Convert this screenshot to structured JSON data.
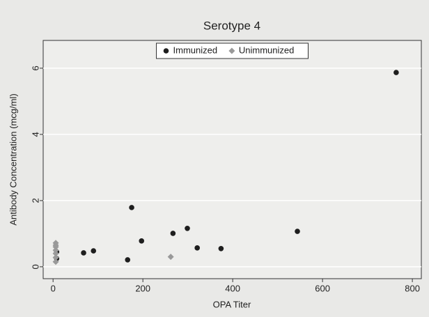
{
  "chart_data": {
    "type": "scatter",
    "title": "Serotype 4",
    "xlabel": "OPA Titer",
    "ylabel": "Antibody Concentration (mcg/ml)",
    "xlim": [
      -22,
      820
    ],
    "ylim": [
      -0.36,
      6.84
    ],
    "xticks": [
      0,
      200,
      400,
      600,
      800
    ],
    "yticks": [
      0,
      2,
      4,
      6
    ],
    "grid": true,
    "legend": "top",
    "series": [
      {
        "name": "Immunized",
        "color": "#1e1e1e",
        "marker": "circle",
        "x": [
          764,
          175,
          267,
          299,
          197,
          321,
          374,
          544,
          68,
          90,
          166,
          8,
          8
        ],
        "values": [
          5.87,
          1.79,
          1.01,
          1.16,
          0.78,
          0.57,
          0.55,
          1.07,
          0.42,
          0.48,
          0.21,
          0.25,
          0.45
        ]
      },
      {
        "name": "Unimmunized",
        "color": "#999999",
        "marker": "diamond",
        "x": [
          6,
          6,
          6,
          6,
          6,
          6,
          6,
          262
        ],
        "values": [
          0.72,
          0.65,
          0.6,
          0.5,
          0.4,
          0.28,
          0.15,
          0.3
        ]
      }
    ]
  }
}
